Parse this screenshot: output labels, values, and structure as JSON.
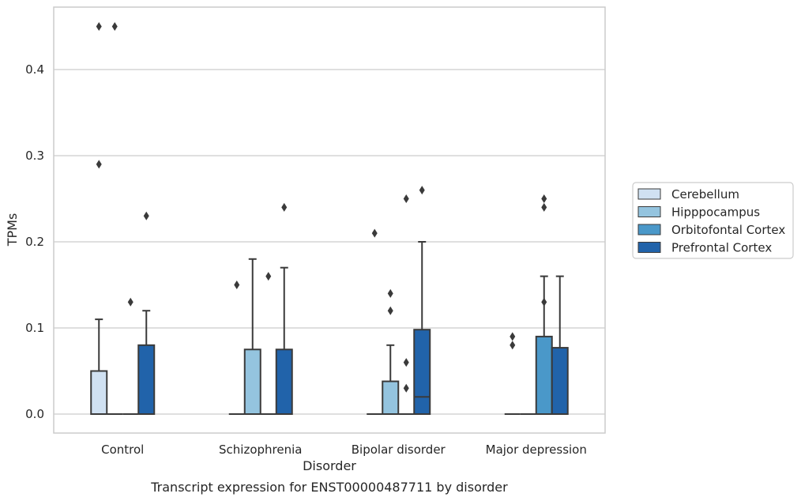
{
  "chart_data": {
    "type": "box",
    "title": "",
    "caption": "Transcript expression for ENST00000487711 by disorder",
    "xlabel": "Disorder",
    "ylabel": "TPMs",
    "categories": [
      "Control",
      "Schizophrenia",
      "Bipolar disorder",
      "Major depression"
    ],
    "ylim": [
      -0.022,
      0.475
    ],
    "yticks": [
      0.0,
      0.1,
      0.2,
      0.3,
      0.4
    ],
    "ytick_labels": [
      "0.0",
      "0.1",
      "0.2",
      "0.3",
      "0.4"
    ],
    "grid": "horizontal",
    "legend_position": "right",
    "series": [
      {
        "name": "Cerebellum",
        "color": "#d0e1f2",
        "boxes": [
          {
            "q1": 0.0,
            "median": 0.0,
            "q3": 0.05,
            "whislo": 0.0,
            "whishi": 0.11,
            "fliers": [
              0.45,
              0.29
            ]
          },
          {
            "q1": 0.0,
            "median": 0.0,
            "q3": 0.0,
            "whislo": 0.0,
            "whishi": 0.0,
            "fliers": [
              0.15
            ]
          },
          {
            "q1": 0.0,
            "median": 0.0,
            "q3": 0.0,
            "whislo": 0.0,
            "whishi": 0.0,
            "fliers": [
              0.21
            ]
          },
          {
            "q1": 0.0,
            "median": 0.0,
            "q3": 0.0,
            "whislo": 0.0,
            "whishi": 0.0,
            "fliers": [
              0.09,
              0.08
            ]
          }
        ]
      },
      {
        "name": "Hipppocampus",
        "color": "#94c4df",
        "boxes": [
          {
            "q1": 0.0,
            "median": 0.0,
            "q3": 0.0,
            "whislo": 0.0,
            "whishi": 0.0,
            "fliers": [
              0.45
            ]
          },
          {
            "q1": 0.0,
            "median": 0.0,
            "q3": 0.075,
            "whislo": 0.0,
            "whishi": 0.18,
            "fliers": []
          },
          {
            "q1": 0.0,
            "median": 0.0,
            "q3": 0.038,
            "whislo": 0.0,
            "whishi": 0.08,
            "fliers": [
              0.14,
              0.12
            ]
          },
          {
            "q1": 0.0,
            "median": 0.0,
            "q3": 0.0,
            "whislo": 0.0,
            "whishi": 0.0,
            "fliers": []
          }
        ]
      },
      {
        "name": "Orbitofontal Cortex",
        "color": "#4a98c9",
        "boxes": [
          {
            "q1": 0.0,
            "median": 0.0,
            "q3": 0.0,
            "whislo": 0.0,
            "whishi": 0.0,
            "fliers": [
              0.13
            ]
          },
          {
            "q1": 0.0,
            "median": 0.0,
            "q3": 0.0,
            "whislo": 0.0,
            "whishi": 0.0,
            "fliers": [
              0.16
            ]
          },
          {
            "q1": 0.0,
            "median": 0.0,
            "q3": 0.0,
            "whislo": 0.0,
            "whishi": 0.0,
            "fliers": [
              0.25,
              0.06,
              0.03
            ]
          },
          {
            "q1": 0.0,
            "median": 0.0,
            "q3": 0.09,
            "whislo": 0.0,
            "whishi": 0.16,
            "fliers": [
              0.25,
              0.24,
              0.13
            ]
          }
        ]
      },
      {
        "name": "Prefrontal Cortex",
        "color": "#2163aa",
        "boxes": [
          {
            "q1": 0.0,
            "median": 0.0,
            "q3": 0.08,
            "whislo": 0.0,
            "whishi": 0.12,
            "fliers": [
              0.23
            ]
          },
          {
            "q1": 0.0,
            "median": 0.0,
            "q3": 0.075,
            "whislo": 0.0,
            "whishi": 0.17,
            "fliers": [
              0.24
            ]
          },
          {
            "q1": 0.0,
            "median": 0.02,
            "q3": 0.098,
            "whislo": 0.0,
            "whishi": 0.2,
            "fliers": [
              0.26
            ]
          },
          {
            "q1": 0.0,
            "median": 0.0,
            "q3": 0.077,
            "whislo": 0.0,
            "whishi": 0.16,
            "fliers": []
          }
        ]
      }
    ]
  }
}
